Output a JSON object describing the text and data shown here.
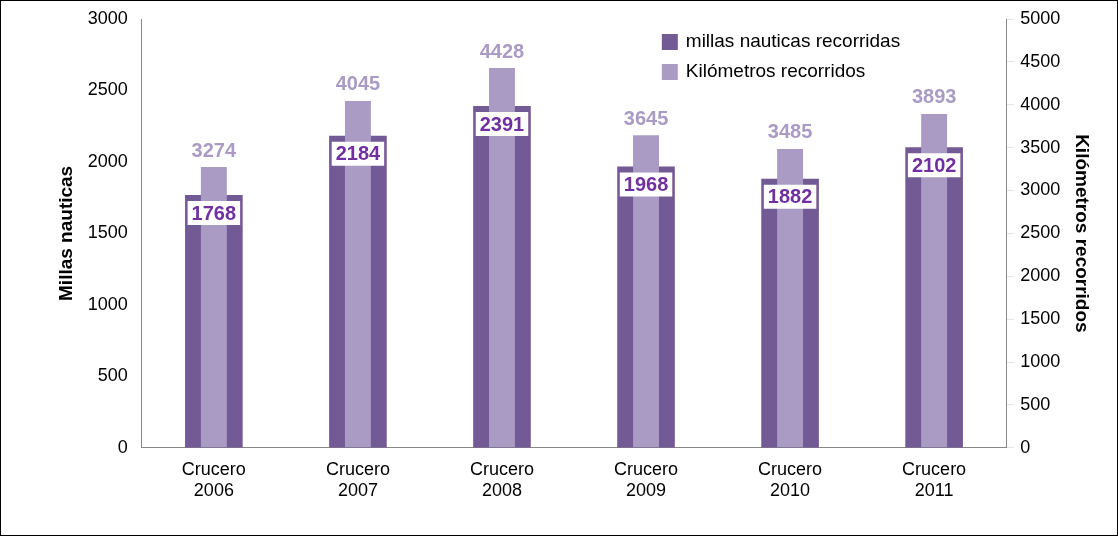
{
  "chart_data": {
    "type": "bar",
    "categories": [
      "Crucero 2006",
      "Crucero 2007",
      "Crucero 2008",
      "Crucero 2009",
      "Crucero 2010",
      "Crucero 2011"
    ],
    "series": [
      {
        "name": "millas nauticas recorridas",
        "color": "#725a95",
        "values": [
          1768,
          2184,
          2391,
          1968,
          1882,
          2102
        ]
      },
      {
        "name": "Kilómetros recorridos",
        "color": "#a99bc4",
        "values": [
          3274,
          4045,
          4428,
          3645,
          3485,
          3893
        ],
        "axis": "y2"
      }
    ],
    "ylabel": "Millas nauticas",
    "y2label": "Kilómetros recorridos",
    "ylim": [
      0,
      3000
    ],
    "yticks": [
      0,
      500,
      1000,
      1500,
      2000,
      2500,
      3000
    ],
    "y2lim": [
      0,
      5000
    ],
    "y2ticks": [
      0,
      500,
      1000,
      1500,
      2000,
      2500,
      3000,
      3500,
      4000,
      4500,
      5000
    ],
    "data_labels": true,
    "grid": false,
    "legend": "top right"
  }
}
